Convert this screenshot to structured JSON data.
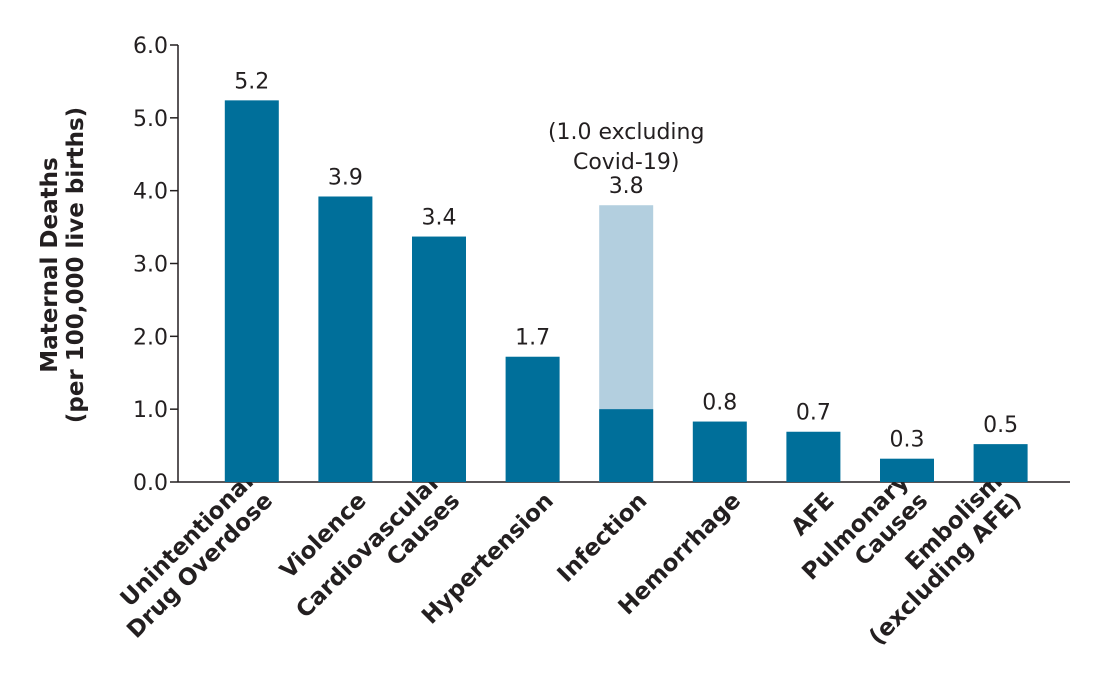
{
  "chart_data": {
    "type": "bar",
    "y_label": "Maternal Deaths\n(per 100,000 live births)",
    "categories": [
      "Unintentional\nDrug Overdose",
      "Violence",
      "Cardiovascular\nCauses",
      "Hypertension",
      "Infection",
      "Hemorrhage",
      "AFE",
      "Pulmonary\nCauses",
      "Embolism\n(excluding AFE)"
    ],
    "series": [
      {
        "color": "#006f9a",
        "values": [
          5.24,
          3.92,
          3.37,
          1.72,
          null,
          0.83,
          0.69,
          0.32,
          0.52
        ],
        "value_labels": [
          "5.2",
          "3.9",
          "3.4",
          "1.7",
          null,
          "0.8",
          "0.7",
          "0.3",
          "0.5"
        ]
      },
      {
        "color": "#b3cfdf",
        "values": [
          null,
          null,
          null,
          null,
          3.8,
          null,
          null,
          null,
          null
        ],
        "value_labels": [
          null,
          null,
          null,
          null,
          "3.8",
          null,
          null,
          null,
          null
        ]
      }
    ],
    "annotations": [
      {
        "category": "Infection",
        "value": 1.0,
        "color": "#006f9a",
        "text": "(1.0 excluding\nCovid-19)"
      }
    ],
    "ylim": [
      0,
      6
    ],
    "yticks": [
      {
        "value": 0,
        "label": "0.0"
      },
      {
        "value": 1,
        "label": "1.0"
      },
      {
        "value": 2,
        "label": "2.0"
      },
      {
        "value": 3,
        "label": "3.0"
      },
      {
        "value": 4,
        "label": "4.0"
      },
      {
        "value": 5,
        "label": "5.0"
      },
      {
        "value": 6,
        "label": "6.0"
      }
    ]
  }
}
